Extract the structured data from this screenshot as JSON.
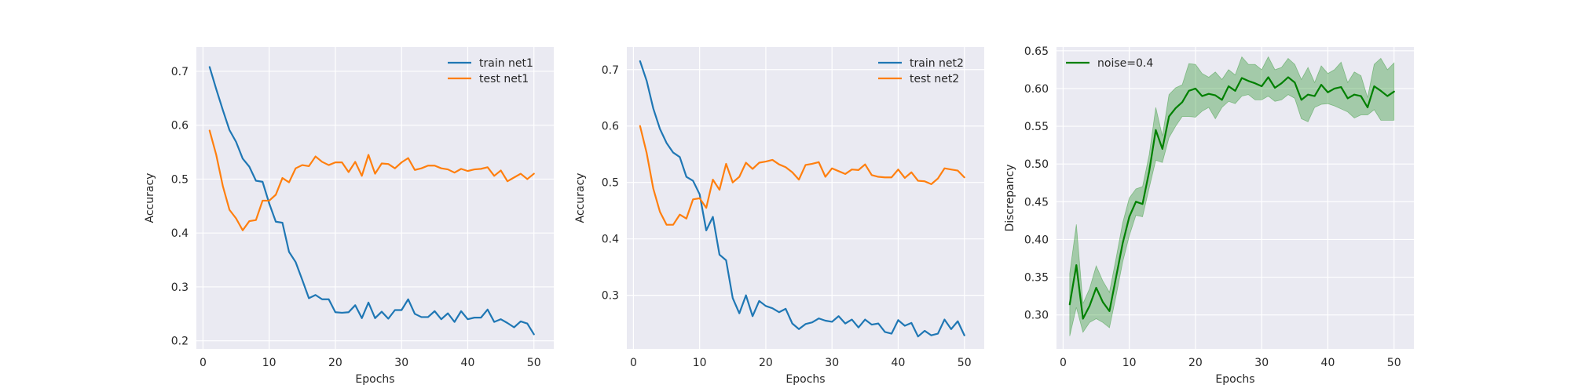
{
  "chart_data": [
    {
      "type": "line",
      "xlabel": "Epochs",
      "ylabel": "Accuracy",
      "xlim": [
        -1,
        53
      ],
      "ylim": [
        0.185,
        0.745
      ],
      "xticks": [
        0,
        10,
        20,
        30,
        40,
        50
      ],
      "yticks": [
        0.2,
        0.3,
        0.4,
        0.5,
        0.6,
        0.7
      ],
      "ytick_decimals": 1,
      "grid": true,
      "legend": "top-right",
      "x": [
        1,
        2,
        3,
        4,
        5,
        6,
        7,
        8,
        9,
        10,
        11,
        12,
        13,
        14,
        15,
        16,
        17,
        18,
        19,
        20,
        21,
        22,
        23,
        24,
        25,
        26,
        27,
        28,
        29,
        30,
        31,
        32,
        33,
        34,
        35,
        36,
        37,
        38,
        39,
        40,
        41,
        42,
        43,
        44,
        45,
        46,
        47,
        48,
        49,
        50
      ],
      "series": [
        {
          "name": "train net1",
          "color": "#1f77b4",
          "values": [
            0.708,
            0.667,
            0.628,
            0.591,
            0.569,
            0.538,
            0.523,
            0.497,
            0.495,
            0.455,
            0.421,
            0.419,
            0.365,
            0.346,
            0.313,
            0.279,
            0.285,
            0.277,
            0.277,
            0.253,
            0.252,
            0.253,
            0.266,
            0.242,
            0.271,
            0.242,
            0.254,
            0.241,
            0.257,
            0.257,
            0.277,
            0.25,
            0.244,
            0.244,
            0.255,
            0.24,
            0.251,
            0.235,
            0.255,
            0.24,
            0.243,
            0.243,
            0.258,
            0.235,
            0.24,
            0.233,
            0.225,
            0.236,
            0.232,
            0.212
          ]
        },
        {
          "name": "test net1",
          "color": "#ff7f0e",
          "values": [
            0.59,
            0.545,
            0.487,
            0.443,
            0.427,
            0.405,
            0.422,
            0.424,
            0.46,
            0.46,
            0.471,
            0.502,
            0.494,
            0.52,
            0.526,
            0.524,
            0.542,
            0.532,
            0.526,
            0.531,
            0.531,
            0.513,
            0.532,
            0.506,
            0.545,
            0.51,
            0.529,
            0.528,
            0.52,
            0.531,
            0.539,
            0.517,
            0.52,
            0.525,
            0.525,
            0.52,
            0.518,
            0.512,
            0.519,
            0.515,
            0.518,
            0.519,
            0.522,
            0.506,
            0.516,
            0.496,
            0.503,
            0.51,
            0.5,
            0.51
          ]
        }
      ]
    },
    {
      "type": "line",
      "xlabel": "Epochs",
      "ylabel": "Accuracy",
      "xlim": [
        -1,
        53
      ],
      "ylim": [
        0.205,
        0.74
      ],
      "xticks": [
        0,
        10,
        20,
        30,
        40,
        50
      ],
      "yticks": [
        0.3,
        0.4,
        0.5,
        0.6,
        0.7
      ],
      "ytick_decimals": 1,
      "grid": true,
      "legend": "top-right",
      "x": [
        1,
        2,
        3,
        4,
        5,
        6,
        7,
        8,
        9,
        10,
        11,
        12,
        13,
        14,
        15,
        16,
        17,
        18,
        19,
        20,
        21,
        22,
        23,
        24,
        25,
        26,
        27,
        28,
        29,
        30,
        31,
        32,
        33,
        34,
        35,
        36,
        37,
        38,
        39,
        40,
        41,
        42,
        43,
        44,
        45,
        46,
        47,
        48,
        49,
        50
      ],
      "series": [
        {
          "name": "train net2",
          "color": "#1f77b4",
          "values": [
            0.715,
            0.68,
            0.631,
            0.595,
            0.57,
            0.553,
            0.545,
            0.51,
            0.503,
            0.479,
            0.415,
            0.439,
            0.372,
            0.362,
            0.295,
            0.268,
            0.3,
            0.263,
            0.29,
            0.281,
            0.277,
            0.27,
            0.276,
            0.25,
            0.24,
            0.249,
            0.252,
            0.259,
            0.255,
            0.253,
            0.263,
            0.25,
            0.257,
            0.243,
            0.257,
            0.248,
            0.25,
            0.235,
            0.232,
            0.256,
            0.246,
            0.251,
            0.227,
            0.237,
            0.229,
            0.232,
            0.257,
            0.24,
            0.254,
            0.229
          ]
        },
        {
          "name": "test net2",
          "color": "#ff7f0e",
          "values": [
            0.6,
            0.552,
            0.489,
            0.448,
            0.425,
            0.425,
            0.443,
            0.436,
            0.47,
            0.472,
            0.455,
            0.505,
            0.487,
            0.533,
            0.5,
            0.51,
            0.535,
            0.524,
            0.535,
            0.537,
            0.54,
            0.532,
            0.527,
            0.518,
            0.505,
            0.531,
            0.533,
            0.536,
            0.51,
            0.525,
            0.52,
            0.515,
            0.523,
            0.522,
            0.532,
            0.513,
            0.51,
            0.509,
            0.509,
            0.523,
            0.508,
            0.518,
            0.503,
            0.502,
            0.497,
            0.507,
            0.525,
            0.523,
            0.521,
            0.509
          ]
        }
      ]
    },
    {
      "type": "line",
      "xlabel": "Epochs",
      "ylabel": "Discrepancy",
      "xlim": [
        -1,
        53
      ],
      "ylim": [
        0.255,
        0.655
      ],
      "xticks": [
        0,
        10,
        20,
        30,
        40,
        50
      ],
      "yticks": [
        0.3,
        0.35,
        0.4,
        0.45,
        0.5,
        0.55,
        0.6,
        0.65
      ],
      "ytick_decimals": 2,
      "grid": true,
      "legend": "top-left",
      "x": [
        1,
        2,
        3,
        4,
        5,
        6,
        7,
        8,
        9,
        10,
        11,
        12,
        13,
        14,
        15,
        16,
        17,
        18,
        19,
        20,
        21,
        22,
        23,
        24,
        25,
        26,
        27,
        28,
        29,
        30,
        31,
        32,
        33,
        34,
        35,
        36,
        37,
        38,
        39,
        40,
        41,
        42,
        43,
        44,
        45,
        46,
        47,
        48,
        49,
        50
      ],
      "series": [
        {
          "name": "noise=0.4",
          "color": "#008000",
          "band_opacity": 0.3,
          "values": [
            0.314,
            0.366,
            0.295,
            0.312,
            0.336,
            0.317,
            0.305,
            0.35,
            0.395,
            0.43,
            0.45,
            0.447,
            0.49,
            0.545,
            0.52,
            0.563,
            0.574,
            0.582,
            0.597,
            0.6,
            0.59,
            0.593,
            0.591,
            0.585,
            0.603,
            0.597,
            0.614,
            0.61,
            0.607,
            0.603,
            0.615,
            0.601,
            0.607,
            0.615,
            0.608,
            0.585,
            0.592,
            0.59,
            0.605,
            0.595,
            0.6,
            0.602,
            0.587,
            0.592,
            0.59,
            0.575,
            0.603,
            0.597,
            0.59,
            0.596
          ],
          "lower": [
            0.272,
            0.31,
            0.277,
            0.29,
            0.295,
            0.29,
            0.283,
            0.325,
            0.37,
            0.405,
            0.432,
            0.43,
            0.468,
            0.505,
            0.502,
            0.535,
            0.55,
            0.563,
            0.563,
            0.562,
            0.57,
            0.575,
            0.56,
            0.575,
            0.583,
            0.58,
            0.59,
            0.592,
            0.585,
            0.585,
            0.59,
            0.583,
            0.585,
            0.592,
            0.587,
            0.56,
            0.556,
            0.575,
            0.579,
            0.58,
            0.577,
            0.573,
            0.569,
            0.561,
            0.565,
            0.565,
            0.572,
            0.558,
            0.558,
            0.558
          ],
          "upper": [
            0.355,
            0.42,
            0.315,
            0.335,
            0.365,
            0.345,
            0.33,
            0.375,
            0.422,
            0.455,
            0.467,
            0.47,
            0.512,
            0.575,
            0.537,
            0.592,
            0.601,
            0.605,
            0.633,
            0.632,
            0.62,
            0.615,
            0.622,
            0.612,
            0.625,
            0.618,
            0.642,
            0.632,
            0.632,
            0.625,
            0.642,
            0.625,
            0.628,
            0.64,
            0.632,
            0.612,
            0.628,
            0.608,
            0.63,
            0.62,
            0.625,
            0.635,
            0.608,
            0.622,
            0.617,
            0.588,
            0.632,
            0.64,
            0.625,
            0.634
          ]
        }
      ]
    }
  ]
}
